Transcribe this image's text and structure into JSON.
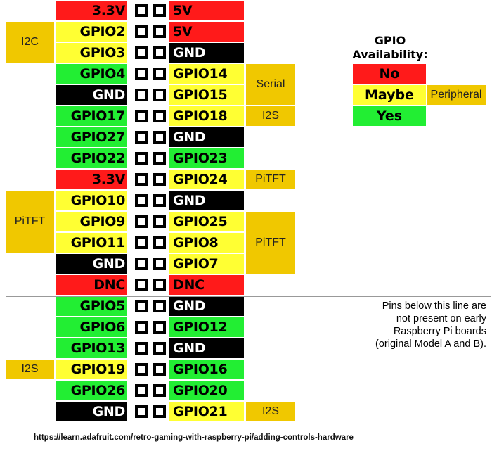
{
  "colors": {
    "no": "#ff1a1a",
    "maybe": "#ffff33",
    "yes": "#22ee33",
    "ground": "#000000",
    "peripheral": "#f0c800"
  },
  "rows": [
    {
      "left": "3.3V",
      "left_type": "no",
      "right": "5V",
      "right_type": "no"
    },
    {
      "left": "GPIO2",
      "left_type": "maybe",
      "right": "5V",
      "right_type": "no"
    },
    {
      "left": "GPIO3",
      "left_type": "maybe",
      "right": "GND",
      "right_type": "ground"
    },
    {
      "left": "GPIO4",
      "left_type": "yes",
      "right": "GPIO14",
      "right_type": "maybe"
    },
    {
      "left": "GND",
      "left_type": "ground",
      "right": "GPIO15",
      "right_type": "maybe"
    },
    {
      "left": "GPIO17",
      "left_type": "yes",
      "right": "GPIO18",
      "right_type": "maybe"
    },
    {
      "left": "GPIO27",
      "left_type": "yes",
      "right": "GND",
      "right_type": "ground"
    },
    {
      "left": "GPIO22",
      "left_type": "yes",
      "right": "GPIO23",
      "right_type": "yes"
    },
    {
      "left": "3.3V",
      "left_type": "no",
      "right": "GPIO24",
      "right_type": "maybe"
    },
    {
      "left": "GPIO10",
      "left_type": "maybe",
      "right": "GND",
      "right_type": "ground"
    },
    {
      "left": "GPIO9",
      "left_type": "maybe",
      "right": "GPIO25",
      "right_type": "maybe"
    },
    {
      "left": "GPIO11",
      "left_type": "maybe",
      "right": "GPIO8",
      "right_type": "maybe"
    },
    {
      "left": "GND",
      "left_type": "ground",
      "right": "GPIO7",
      "right_type": "maybe"
    },
    {
      "left": "DNC",
      "left_type": "no",
      "right": "DNC",
      "right_type": "no"
    },
    {
      "left": "GPIO5",
      "left_type": "yes",
      "right": "GND",
      "right_type": "ground"
    },
    {
      "left": "GPIO6",
      "left_type": "yes",
      "right": "GPIO12",
      "right_type": "yes"
    },
    {
      "left": "GPIO13",
      "left_type": "yes",
      "right": "GND",
      "right_type": "ground"
    },
    {
      "left": "GPIO19",
      "left_type": "maybe",
      "right": "GPIO16",
      "right_type": "yes"
    },
    {
      "left": "GPIO26",
      "left_type": "yes",
      "right": "GPIO20",
      "right_type": "yes"
    },
    {
      "left": "GND",
      "left_type": "ground",
      "right": "GPIO21",
      "right_type": "maybe"
    }
  ],
  "peripherals": [
    {
      "label": "I2C",
      "side": "left",
      "start_row": 1,
      "rows": 2
    },
    {
      "label": "PiTFT",
      "side": "left",
      "start_row": 9,
      "rows": 3
    },
    {
      "label": "I2S",
      "side": "left",
      "start_row": 17,
      "rows": 1
    },
    {
      "label": "Serial",
      "side": "right",
      "start_row": 3,
      "rows": 2
    },
    {
      "label": "I2S",
      "side": "right",
      "start_row": 5,
      "rows": 1
    },
    {
      "label": "PiTFT",
      "side": "right",
      "start_row": 8,
      "rows": 1
    },
    {
      "label": "PiTFT",
      "side": "right",
      "start_row": 10,
      "rows": 3
    },
    {
      "label": "I2S",
      "side": "right",
      "start_row": 19,
      "rows": 1
    }
  ],
  "legend": {
    "title_line1": "GPIO",
    "title_line2": "Availability:",
    "items": [
      {
        "label": "No",
        "type": "no"
      },
      {
        "label": "Maybe",
        "type": "maybe"
      },
      {
        "label": "Yes",
        "type": "yes"
      }
    ],
    "peripheral_label": "Peripheral"
  },
  "note_lines": [
    "Pins below this line are",
    "not present on early",
    "Raspberry Pi boards",
    "(original Model A and B)."
  ],
  "source_url": "https://learn.adafruit.com/retro-gaming-with-raspberry-pi/adding-controls-hardware"
}
